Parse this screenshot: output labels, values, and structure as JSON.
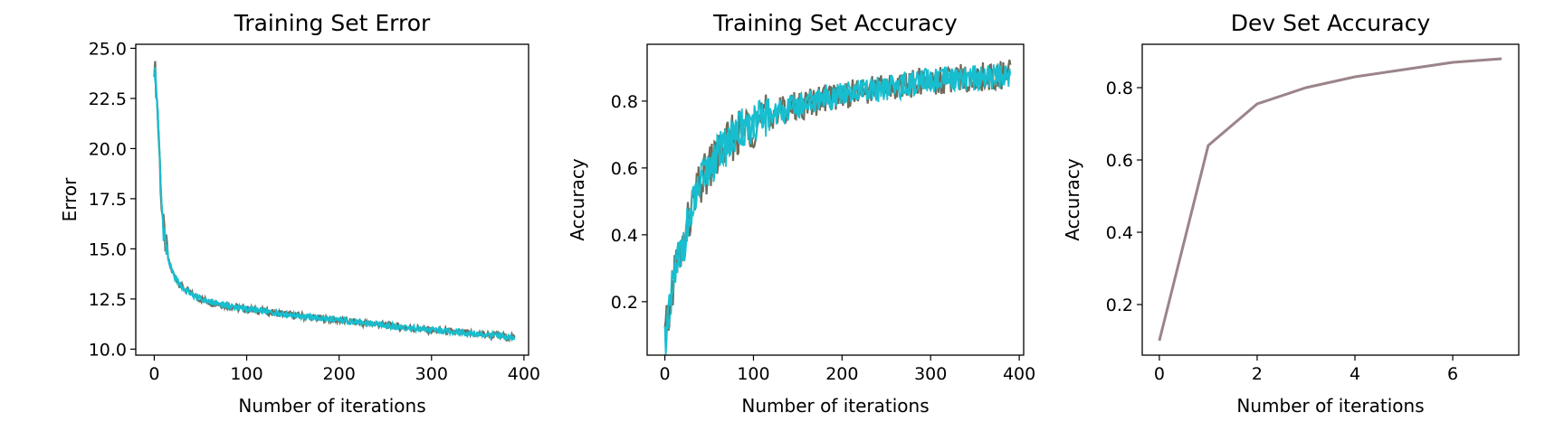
{
  "chart_data": [
    {
      "type": "line",
      "title": "Training Set Error",
      "xlabel": "Number of iterations",
      "ylabel": "Error",
      "xlim": [
        -20,
        405
      ],
      "ylim": [
        9.7,
        25.2
      ],
      "xticks": [
        0,
        100,
        200,
        300,
        400
      ],
      "yticks": [
        10.0,
        12.5,
        15.0,
        17.5,
        20.0,
        22.5,
        25.0
      ],
      "grid": false,
      "series": [
        {
          "color": "#17becf",
          "x": [
            0,
            2,
            4,
            6,
            8,
            10,
            13,
            16,
            20,
            25,
            30,
            40,
            50,
            60,
            80,
            100,
            125,
            150,
            175,
            200,
            225,
            250,
            275,
            300,
            325,
            350,
            375,
            390
          ],
          "values": [
            24.3,
            23.2,
            21.5,
            19.3,
            17.2,
            16.0,
            15.0,
            14.3,
            13.8,
            13.4,
            13.1,
            12.75,
            12.5,
            12.35,
            12.15,
            12.0,
            11.85,
            11.7,
            11.55,
            11.45,
            11.3,
            11.2,
            11.05,
            10.95,
            10.85,
            10.75,
            10.65,
            10.55
          ]
        }
      ]
    },
    {
      "type": "line",
      "title": "Training Set Accuracy",
      "xlabel": "Number of iterations",
      "ylabel": "Accuracy",
      "xlim": [
        -20,
        405
      ],
      "ylim": [
        0.04,
        0.97
      ],
      "xticks": [
        0,
        100,
        200,
        300,
        400
      ],
      "yticks": [
        0.2,
        0.4,
        0.6,
        0.8
      ],
      "grid": false,
      "series": [
        {
          "color": "#17becf",
          "x": [
            0,
            5,
            10,
            15,
            20,
            25,
            30,
            35,
            40,
            50,
            60,
            70,
            80,
            90,
            100,
            120,
            140,
            160,
            180,
            200,
            225,
            250,
            275,
            300,
            325,
            350,
            375,
            390
          ],
          "values": [
            0.09,
            0.16,
            0.28,
            0.33,
            0.36,
            0.42,
            0.47,
            0.51,
            0.55,
            0.6,
            0.64,
            0.67,
            0.7,
            0.72,
            0.73,
            0.76,
            0.78,
            0.79,
            0.81,
            0.82,
            0.83,
            0.84,
            0.85,
            0.86,
            0.865,
            0.87,
            0.875,
            0.88
          ]
        }
      ]
    },
    {
      "type": "line",
      "title": "Dev Set Accuracy",
      "xlabel": "Number of iterations",
      "ylabel": "Accuracy",
      "xlim": [
        -0.35,
        7.35
      ],
      "ylim": [
        0.06,
        0.92
      ],
      "xticks": [
        0,
        2,
        4,
        6
      ],
      "yticks": [
        0.2,
        0.4,
        0.6,
        0.8
      ],
      "grid": false,
      "series": [
        {
          "color": "#9b8489",
          "x": [
            0,
            1,
            2,
            3,
            4,
            5,
            6,
            7
          ],
          "values": [
            0.1,
            0.64,
            0.755,
            0.8,
            0.83,
            0.85,
            0.87,
            0.88
          ]
        }
      ]
    }
  ]
}
